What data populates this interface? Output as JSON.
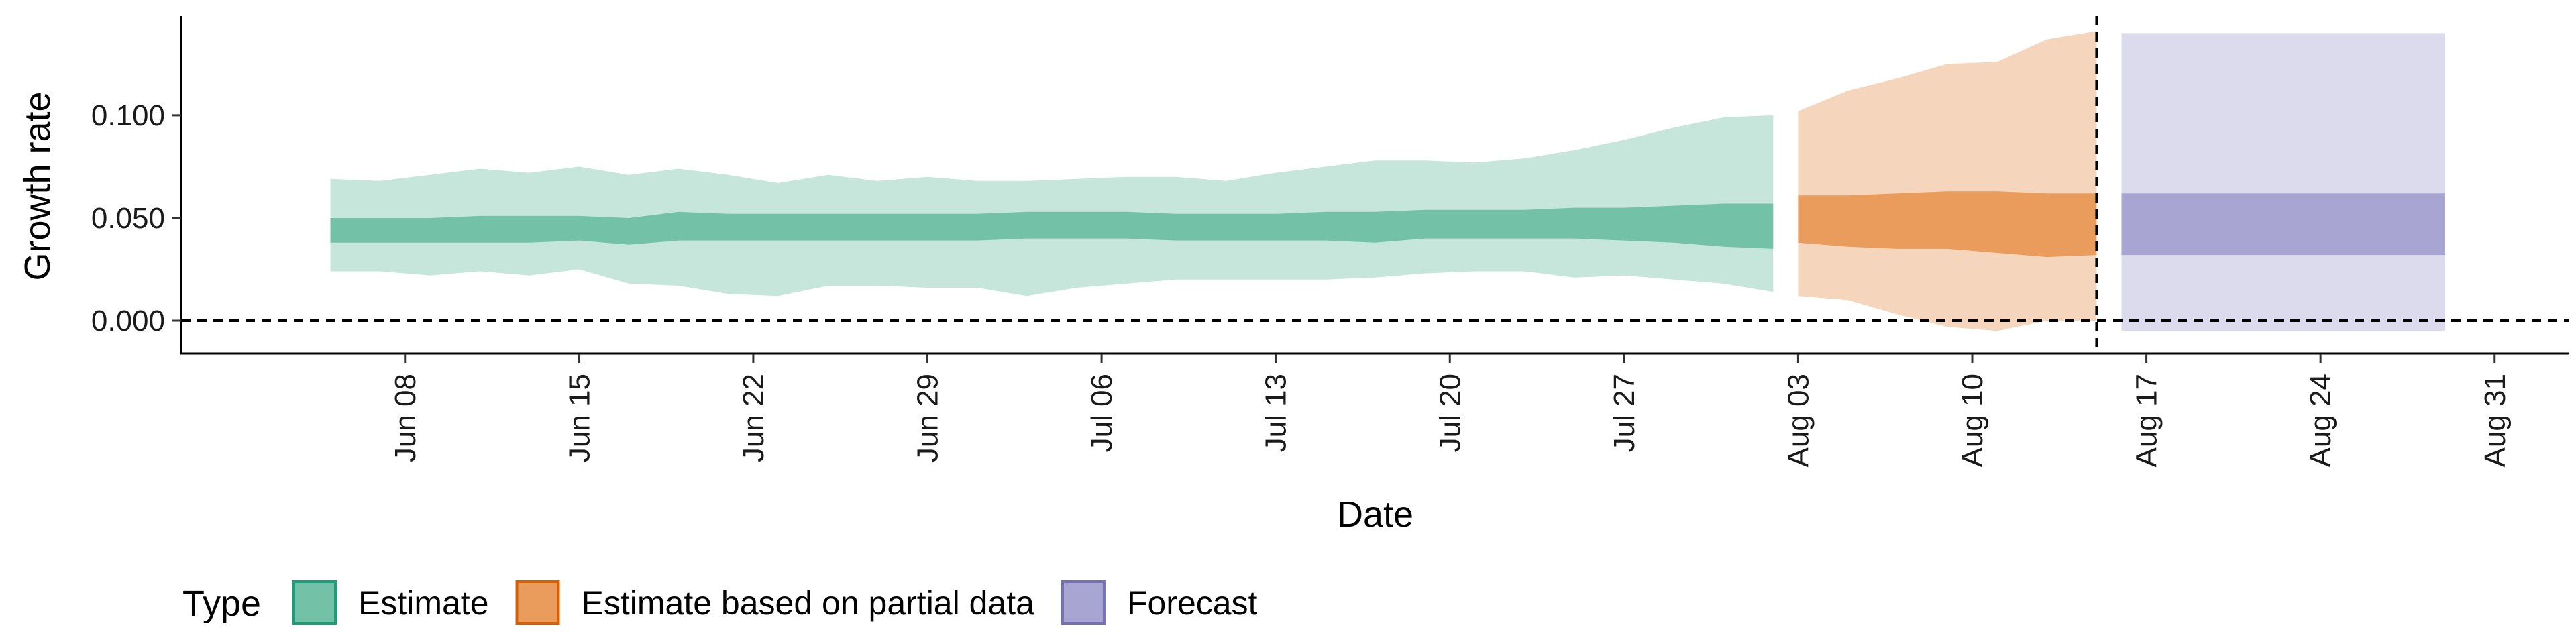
{
  "chart_data": {
    "type": "area",
    "xlabel": "Date",
    "ylabel": "Growth rate",
    "x_axis_type": "date",
    "xlim": [
      "2020-05-30",
      "2020-09-03"
    ],
    "ylim": [
      -0.016,
      0.147
    ],
    "x_ticks": [
      {
        "date": "2020-06-08",
        "label": "Jun 08"
      },
      {
        "date": "2020-06-15",
        "label": "Jun 15"
      },
      {
        "date": "2020-06-22",
        "label": "Jun 22"
      },
      {
        "date": "2020-06-29",
        "label": "Jun 29"
      },
      {
        "date": "2020-07-06",
        "label": "Jul 06"
      },
      {
        "date": "2020-07-13",
        "label": "Jul 13"
      },
      {
        "date": "2020-07-20",
        "label": "Jul 20"
      },
      {
        "date": "2020-07-27",
        "label": "Jul 27"
      },
      {
        "date": "2020-08-03",
        "label": "Aug 03"
      },
      {
        "date": "2020-08-10",
        "label": "Aug 10"
      },
      {
        "date": "2020-08-17",
        "label": "Aug 17"
      },
      {
        "date": "2020-08-24",
        "label": "Aug 24"
      },
      {
        "date": "2020-08-31",
        "label": "Aug 31"
      }
    ],
    "y_ticks": [
      {
        "value": 0.0,
        "label": "0.000"
      },
      {
        "value": 0.05,
        "label": "0.050"
      },
      {
        "value": 0.1,
        "label": "0.100"
      }
    ],
    "reference_lines": {
      "horizontal_y": 0.0,
      "vertical_date": "2020-08-15"
    },
    "grid": false,
    "legend": {
      "title": "Type",
      "position": "bottom-left",
      "entries": [
        {
          "label": "Estimate",
          "fill": "#73c2a8",
          "stroke": "#1b9e77"
        },
        {
          "label": "Estimate based on partial data",
          "fill": "#ea9c5c",
          "stroke": "#d95f02"
        },
        {
          "label": "Forecast",
          "fill": "#a8a5d3",
          "stroke": "#7570b3"
        }
      ]
    },
    "series": [
      {
        "name": "Estimate",
        "color_outer": "#c6e6dc",
        "color_inner": "#73c2a8",
        "points": [
          {
            "date": "2020-06-05",
            "outer": [
              0.024,
              0.069
            ],
            "inner": [
              0.038,
              0.05
            ]
          },
          {
            "date": "2020-06-07",
            "outer": [
              0.024,
              0.068
            ],
            "inner": [
              0.038,
              0.05
            ]
          },
          {
            "date": "2020-06-09",
            "outer": [
              0.022,
              0.071
            ],
            "inner": [
              0.038,
              0.05
            ]
          },
          {
            "date": "2020-06-11",
            "outer": [
              0.024,
              0.074
            ],
            "inner": [
              0.038,
              0.051
            ]
          },
          {
            "date": "2020-06-13",
            "outer": [
              0.022,
              0.072
            ],
            "inner": [
              0.038,
              0.051
            ]
          },
          {
            "date": "2020-06-15",
            "outer": [
              0.025,
              0.075
            ],
            "inner": [
              0.039,
              0.051
            ]
          },
          {
            "date": "2020-06-17",
            "outer": [
              0.018,
              0.071
            ],
            "inner": [
              0.037,
              0.05
            ]
          },
          {
            "date": "2020-06-19",
            "outer": [
              0.017,
              0.074
            ],
            "inner": [
              0.039,
              0.053
            ]
          },
          {
            "date": "2020-06-21",
            "outer": [
              0.013,
              0.071
            ],
            "inner": [
              0.039,
              0.052
            ]
          },
          {
            "date": "2020-06-23",
            "outer": [
              0.012,
              0.067
            ],
            "inner": [
              0.039,
              0.052
            ]
          },
          {
            "date": "2020-06-25",
            "outer": [
              0.017,
              0.071
            ],
            "inner": [
              0.039,
              0.052
            ]
          },
          {
            "date": "2020-06-27",
            "outer": [
              0.017,
              0.068
            ],
            "inner": [
              0.039,
              0.052
            ]
          },
          {
            "date": "2020-06-29",
            "outer": [
              0.016,
              0.07
            ],
            "inner": [
              0.039,
              0.052
            ]
          },
          {
            "date": "2020-07-01",
            "outer": [
              0.016,
              0.068
            ],
            "inner": [
              0.039,
              0.052
            ]
          },
          {
            "date": "2020-07-03",
            "outer": [
              0.012,
              0.068
            ],
            "inner": [
              0.04,
              0.053
            ]
          },
          {
            "date": "2020-07-05",
            "outer": [
              0.016,
              0.069
            ],
            "inner": [
              0.04,
              0.053
            ]
          },
          {
            "date": "2020-07-07",
            "outer": [
              0.018,
              0.07
            ],
            "inner": [
              0.04,
              0.053
            ]
          },
          {
            "date": "2020-07-09",
            "outer": [
              0.02,
              0.07
            ],
            "inner": [
              0.039,
              0.052
            ]
          },
          {
            "date": "2020-07-11",
            "outer": [
              0.02,
              0.068
            ],
            "inner": [
              0.039,
              0.052
            ]
          },
          {
            "date": "2020-07-13",
            "outer": [
              0.02,
              0.072
            ],
            "inner": [
              0.039,
              0.052
            ]
          },
          {
            "date": "2020-07-15",
            "outer": [
              0.02,
              0.075
            ],
            "inner": [
              0.039,
              0.053
            ]
          },
          {
            "date": "2020-07-17",
            "outer": [
              0.021,
              0.078
            ],
            "inner": [
              0.038,
              0.053
            ]
          },
          {
            "date": "2020-07-19",
            "outer": [
              0.023,
              0.078
            ],
            "inner": [
              0.04,
              0.054
            ]
          },
          {
            "date": "2020-07-21",
            "outer": [
              0.024,
              0.077
            ],
            "inner": [
              0.04,
              0.054
            ]
          },
          {
            "date": "2020-07-23",
            "outer": [
              0.024,
              0.079
            ],
            "inner": [
              0.04,
              0.054
            ]
          },
          {
            "date": "2020-07-25",
            "outer": [
              0.021,
              0.083
            ],
            "inner": [
              0.04,
              0.055
            ]
          },
          {
            "date": "2020-07-27",
            "outer": [
              0.022,
              0.088
            ],
            "inner": [
              0.039,
              0.055
            ]
          },
          {
            "date": "2020-07-29",
            "outer": [
              0.02,
              0.094
            ],
            "inner": [
              0.038,
              0.056
            ]
          },
          {
            "date": "2020-07-31",
            "outer": [
              0.018,
              0.099
            ],
            "inner": [
              0.036,
              0.057
            ]
          },
          {
            "date": "2020-08-02",
            "outer": [
              0.014,
              0.1
            ],
            "inner": [
              0.035,
              0.057
            ]
          }
        ]
      },
      {
        "name": "Estimate based on partial data",
        "color_outer": "#f5d5bc",
        "color_inner": "#ea9c5c",
        "points": [
          {
            "date": "2020-08-03",
            "outer": [
              0.012,
              0.102
            ],
            "inner": [
              0.038,
              0.061
            ]
          },
          {
            "date": "2020-08-05",
            "outer": [
              0.01,
              0.112
            ],
            "inner": [
              0.036,
              0.061
            ]
          },
          {
            "date": "2020-08-07",
            "outer": [
              0.003,
              0.118
            ],
            "inner": [
              0.035,
              0.062
            ]
          },
          {
            "date": "2020-08-09",
            "outer": [
              -0.003,
              0.125
            ],
            "inner": [
              0.035,
              0.063
            ]
          },
          {
            "date": "2020-08-11",
            "outer": [
              -0.005,
              0.126
            ],
            "inner": [
              0.033,
              0.063
            ]
          },
          {
            "date": "2020-08-13",
            "outer": [
              0.0,
              0.137
            ],
            "inner": [
              0.031,
              0.062
            ]
          },
          {
            "date": "2020-08-15",
            "outer": [
              0.0,
              0.141
            ],
            "inner": [
              0.032,
              0.062
            ]
          }
        ]
      },
      {
        "name": "Forecast",
        "color_outer": "#dcdbed",
        "color_inner": "#a8a5d3",
        "points": [
          {
            "date": "2020-08-16",
            "outer": [
              -0.005,
              0.14
            ],
            "inner": [
              0.032,
              0.062
            ]
          },
          {
            "date": "2020-08-29",
            "outer": [
              -0.005,
              0.14
            ],
            "inner": [
              0.032,
              0.062
            ]
          }
        ]
      }
    ]
  }
}
